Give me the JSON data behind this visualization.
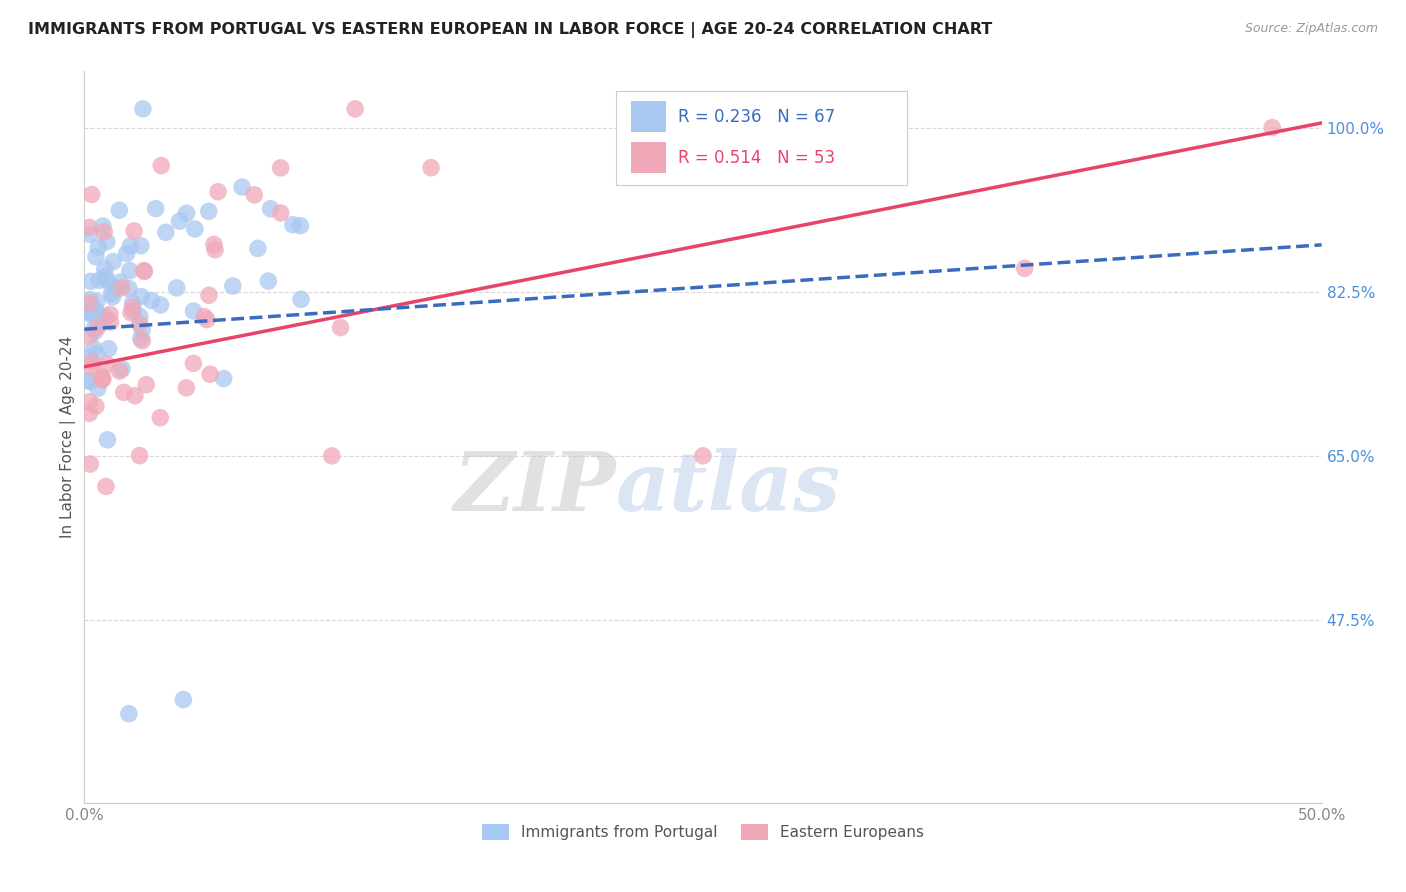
{
  "title": "IMMIGRANTS FROM PORTUGAL VS EASTERN EUROPEAN IN LABOR FORCE | AGE 20-24 CORRELATION CHART",
  "source": "Source: ZipAtlas.com",
  "ylabel": "In Labor Force | Age 20-24",
  "y_ticks": [
    0.475,
    0.65,
    0.825,
    1.0
  ],
  "y_tick_labels": [
    "47.5%",
    "65.0%",
    "82.5%",
    "100.0%"
  ],
  "xlim": [
    0.0,
    0.5
  ],
  "ylim": [
    0.28,
    1.06
  ],
  "portugal_R": 0.236,
  "portugal_N": 67,
  "eastern_R": 0.514,
  "eastern_N": 53,
  "portugal_color": "#a8c8f0",
  "eastern_color": "#f0a8b8",
  "portugal_line_color": "#3a6bbf",
  "eastern_line_color": "#e8446a",
  "legend_label_portugal": "Immigrants from Portugal",
  "legend_label_eastern": "Eastern Europeans",
  "watermark_zip": "ZIP",
  "watermark_atlas": "atlas",
  "background_color": "#ffffff",
  "portugal_trend_x0": 0.0,
  "portugal_trend_y0": 0.785,
  "portugal_trend_x1": 0.5,
  "portugal_trend_y1": 0.875,
  "eastern_trend_x0": 0.0,
  "eastern_trend_y0": 0.745,
  "eastern_trend_x1": 0.5,
  "eastern_trend_y1": 1.005
}
